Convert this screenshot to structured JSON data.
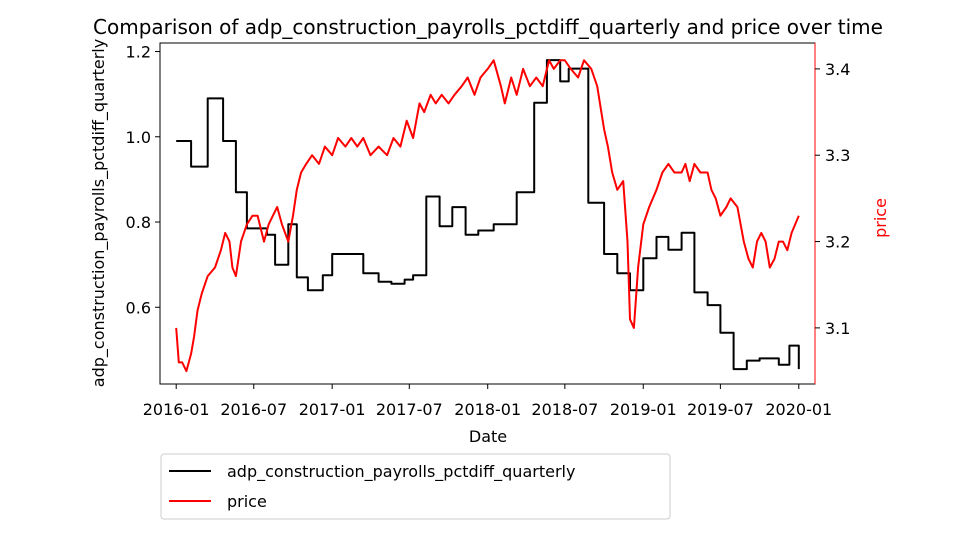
{
  "chart_data": {
    "type": "line",
    "title": "Comparison of adp_construction_payrolls_pctdiff_quarterly and price over time",
    "xlabel": "Date",
    "ylabel_left": "adp_construction_payrolls_pctdiff_quarterly",
    "ylabel_right": "price",
    "x_ticks": [
      "2016-01",
      "2016-07",
      "2017-01",
      "2017-07",
      "2018-01",
      "2018-07",
      "2019-01",
      "2019-07",
      "2020-01"
    ],
    "xlim": [
      "2015-11-24",
      "2020-02-08"
    ],
    "ylim_left": [
      0.42,
      1.22
    ],
    "ylim_right": [
      3.035,
      3.43
    ],
    "yticks_left": [
      "0.6",
      "0.8",
      "1.0",
      "1.2"
    ],
    "yticks_right": [
      "3.1",
      "3.2",
      "3.3",
      "3.4"
    ],
    "grid": false,
    "legend_position": "below",
    "colors": {
      "left": "#000000",
      "right": "#ff0000"
    },
    "series": [
      {
        "name": "adp_construction_payrolls_pctdiff_quarterly",
        "axis": "left",
        "step": true,
        "color": "#000000",
        "x": [
          "2016-01-01",
          "2016-02-05",
          "2016-03-15",
          "2016-04-20",
          "2016-05-20",
          "2016-06-15",
          "2016-08-01",
          "2016-08-20",
          "2016-09-20",
          "2016-10-10",
          "2016-11-05",
          "2016-12-10",
          "2017-01-01",
          "2017-02-10",
          "2017-03-15",
          "2017-04-20",
          "2017-05-20",
          "2017-06-20",
          "2017-07-10",
          "2017-08-10",
          "2017-09-10",
          "2017-10-10",
          "2017-11-10",
          "2017-12-10",
          "2018-01-15",
          "2018-03-10",
          "2018-04-20",
          "2018-05-20",
          "2018-06-20",
          "2018-07-10",
          "2018-08-25",
          "2018-10-01",
          "2018-11-01",
          "2018-12-01",
          "2019-01-01",
          "2019-02-01",
          "2019-03-01",
          "2019-04-01",
          "2019-05-01",
          "2019-06-01",
          "2019-07-01",
          "2019-08-01",
          "2019-09-01",
          "2019-10-01",
          "2019-11-15",
          "2019-12-10",
          "2020-01-01"
        ],
        "values": [
          0.99,
          0.93,
          1.09,
          0.99,
          0.87,
          0.785,
          0.77,
          0.7,
          0.795,
          0.67,
          0.64,
          0.675,
          0.725,
          0.725,
          0.68,
          0.66,
          0.655,
          0.665,
          0.675,
          0.86,
          0.79,
          0.835,
          0.77,
          0.78,
          0.795,
          0.87,
          1.08,
          1.18,
          1.13,
          1.16,
          0.845,
          0.725,
          0.68,
          0.64,
          0.715,
          0.765,
          0.735,
          0.775,
          0.635,
          0.605,
          0.54,
          0.455,
          0.475,
          0.48,
          0.465,
          0.51,
          0.455
        ]
      },
      {
        "name": "price",
        "axis": "right",
        "step": false,
        "color": "#ff0000",
        "x": [
          "2016-01-01",
          "2016-01-07",
          "2016-01-15",
          "2016-01-25",
          "2016-02-05",
          "2016-02-12",
          "2016-02-20",
          "2016-03-01",
          "2016-03-15",
          "2016-04-01",
          "2016-04-15",
          "2016-04-25",
          "2016-05-05",
          "2016-05-12",
          "2016-05-20",
          "2016-06-01",
          "2016-06-15",
          "2016-06-28",
          "2016-07-10",
          "2016-07-25",
          "2016-08-05",
          "2016-08-15",
          "2016-08-25",
          "2016-09-05",
          "2016-09-20",
          "2016-10-01",
          "2016-10-10",
          "2016-10-20",
          "2016-11-01",
          "2016-11-15",
          "2016-12-01",
          "2016-12-15",
          "2017-01-01",
          "2017-01-15",
          "2017-02-01",
          "2017-02-15",
          "2017-03-01",
          "2017-03-15",
          "2017-04-01",
          "2017-04-20",
          "2017-05-10",
          "2017-05-25",
          "2017-06-10",
          "2017-06-25",
          "2017-07-10",
          "2017-07-25",
          "2017-08-05",
          "2017-08-20",
          "2017-09-01",
          "2017-09-15",
          "2017-10-01",
          "2017-10-15",
          "2017-11-01",
          "2017-11-15",
          "2017-12-01",
          "2017-12-15",
          "2018-01-01",
          "2018-01-15",
          "2018-02-01",
          "2018-02-10",
          "2018-02-25",
          "2018-03-10",
          "2018-03-25",
          "2018-04-10",
          "2018-04-25",
          "2018-05-10",
          "2018-05-25",
          "2018-06-05",
          "2018-06-20",
          "2018-07-01",
          "2018-07-15",
          "2018-08-01",
          "2018-08-15",
          "2018-09-01",
          "2018-09-15",
          "2018-10-01",
          "2018-10-10",
          "2018-10-20",
          "2018-11-01",
          "2018-11-15",
          "2018-11-25",
          "2018-12-01",
          "2018-12-10",
          "2018-12-20",
          "2019-01-01",
          "2019-01-15",
          "2019-02-01",
          "2019-02-15",
          "2019-03-01",
          "2019-03-15",
          "2019-04-01",
          "2019-04-10",
          "2019-04-20",
          "2019-05-01",
          "2019-05-15",
          "2019-06-01",
          "2019-06-10",
          "2019-06-20",
          "2019-07-01",
          "2019-07-15",
          "2019-07-25",
          "2019-08-10",
          "2019-08-25",
          "2019-09-05",
          "2019-09-15",
          "2019-09-25",
          "2019-10-05",
          "2019-10-15",
          "2019-10-25",
          "2019-11-05",
          "2019-11-15",
          "2019-11-25",
          "2019-12-05",
          "2019-12-15",
          "2020-01-01"
        ],
        "values": [
          3.1,
          3.06,
          3.06,
          3.05,
          3.07,
          3.09,
          3.12,
          3.14,
          3.16,
          3.17,
          3.19,
          3.21,
          3.2,
          3.17,
          3.16,
          3.2,
          3.22,
          3.23,
          3.23,
          3.2,
          3.22,
          3.23,
          3.24,
          3.22,
          3.2,
          3.23,
          3.26,
          3.28,
          3.29,
          3.3,
          3.29,
          3.31,
          3.3,
          3.32,
          3.31,
          3.32,
          3.31,
          3.32,
          3.3,
          3.31,
          3.3,
          3.32,
          3.31,
          3.34,
          3.32,
          3.36,
          3.35,
          3.37,
          3.36,
          3.37,
          3.36,
          3.37,
          3.38,
          3.39,
          3.37,
          3.39,
          3.4,
          3.41,
          3.38,
          3.36,
          3.39,
          3.37,
          3.4,
          3.38,
          3.39,
          3.38,
          3.41,
          3.4,
          3.41,
          3.41,
          3.4,
          3.39,
          3.41,
          3.4,
          3.38,
          3.33,
          3.31,
          3.28,
          3.26,
          3.27,
          3.2,
          3.11,
          3.1,
          3.17,
          3.22,
          3.24,
          3.26,
          3.28,
          3.29,
          3.28,
          3.28,
          3.29,
          3.27,
          3.29,
          3.28,
          3.28,
          3.26,
          3.25,
          3.23,
          3.24,
          3.25,
          3.24,
          3.2,
          3.18,
          3.17,
          3.2,
          3.21,
          3.2,
          3.17,
          3.18,
          3.2,
          3.2,
          3.19,
          3.21,
          3.23
        ]
      }
    ]
  }
}
